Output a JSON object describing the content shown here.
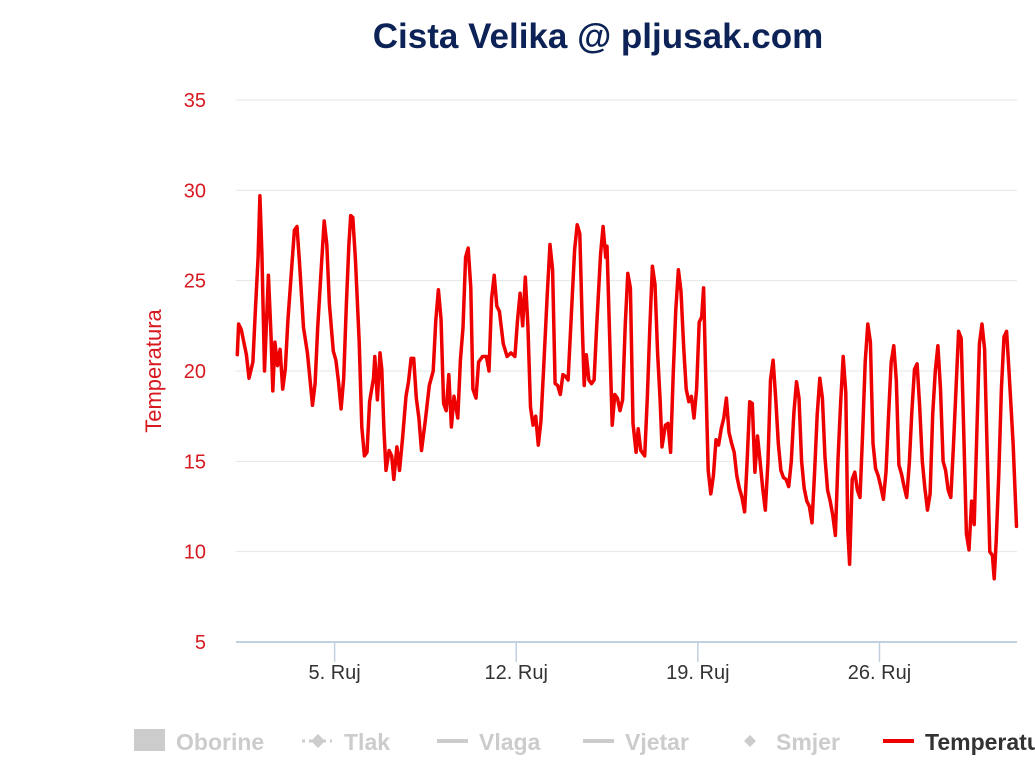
{
  "chart_data": {
    "type": "line",
    "title": "Cista Velika @ pljusak.com",
    "ylabel": "Temperatura",
    "xlabel": "",
    "ylim": [
      5,
      35
    ],
    "yticks": [
      "35",
      "30",
      "25",
      "20",
      "15",
      "10",
      "5"
    ],
    "xtick_labels": [
      "5. Ruj",
      "12. Ruj",
      "19. Ruj",
      "26. Ruj"
    ],
    "xlim_days": [
      1.2,
      31.3
    ],
    "xtick_days": [
      5,
      12,
      19,
      26
    ],
    "grid": true,
    "legend_position": "bottom",
    "colors": {
      "title": "#0d2357",
      "axis_temp": "#d71920",
      "series": "#ee0000",
      "grid": "#e6e6e6",
      "axis_line": "#c0d0e0",
      "legend_inactive": "#cccccc",
      "legend_active": "#333333"
    },
    "legend": [
      {
        "name": "Oborine",
        "symbol": "box",
        "active": false
      },
      {
        "name": "Tlak",
        "symbol": "dash-diamond",
        "active": false
      },
      {
        "name": "Vlaga",
        "symbol": "line",
        "active": false
      },
      {
        "name": "Vjetar",
        "symbol": "line",
        "active": false
      },
      {
        "name": "Smjer",
        "symbol": "diamond",
        "active": false
      },
      {
        "name": "Temperatura",
        "symbol": "line",
        "active": true
      }
    ],
    "series": [
      {
        "name": "Temperatura",
        "points": [
          [
            1.25,
            20.9
          ],
          [
            1.3,
            22.6
          ],
          [
            1.4,
            22.3
          ],
          [
            1.6,
            20.9
          ],
          [
            1.7,
            19.6
          ],
          [
            1.85,
            20.5
          ],
          [
            1.95,
            23.5
          ],
          [
            2.05,
            26.3
          ],
          [
            2.12,
            29.7
          ],
          [
            2.2,
            26.5
          ],
          [
            2.3,
            20.0
          ],
          [
            2.45,
            25.3
          ],
          [
            2.55,
            22.0
          ],
          [
            2.62,
            18.9
          ],
          [
            2.7,
            21.6
          ],
          [
            2.8,
            20.3
          ],
          [
            2.9,
            21.2
          ],
          [
            3.0,
            19.0
          ],
          [
            3.1,
            20.1
          ],
          [
            3.2,
            22.8
          ],
          [
            3.35,
            25.8
          ],
          [
            3.45,
            27.8
          ],
          [
            3.55,
            28.0
          ],
          [
            3.65,
            25.9
          ],
          [
            3.8,
            22.4
          ],
          [
            3.95,
            21.0
          ],
          [
            4.05,
            19.6
          ],
          [
            4.15,
            18.1
          ],
          [
            4.25,
            19.3
          ],
          [
            4.35,
            22.4
          ],
          [
            4.5,
            26.0
          ],
          [
            4.6,
            28.3
          ],
          [
            4.7,
            27.0
          ],
          [
            4.8,
            23.7
          ],
          [
            4.95,
            21.1
          ],
          [
            5.05,
            20.6
          ],
          [
            5.15,
            19.4
          ],
          [
            5.25,
            17.9
          ],
          [
            5.35,
            19.6
          ],
          [
            5.45,
            23.6
          ],
          [
            5.55,
            27.0
          ],
          [
            5.62,
            28.6
          ],
          [
            5.7,
            28.5
          ],
          [
            5.8,
            26.2
          ],
          [
            5.95,
            21.6
          ],
          [
            6.05,
            16.9
          ],
          [
            6.15,
            15.3
          ],
          [
            6.25,
            15.5
          ],
          [
            6.35,
            18.3
          ],
          [
            6.5,
            19.6
          ],
          [
            6.55,
            20.8
          ],
          [
            6.65,
            18.4
          ],
          [
            6.75,
            21.0
          ],
          [
            6.82,
            20.1
          ],
          [
            6.9,
            16.8
          ],
          [
            6.98,
            14.5
          ],
          [
            7.1,
            15.6
          ],
          [
            7.2,
            15.3
          ],
          [
            7.28,
            14.0
          ],
          [
            7.4,
            15.8
          ],
          [
            7.5,
            14.5
          ],
          [
            7.62,
            16.3
          ],
          [
            7.75,
            18.6
          ],
          [
            7.85,
            19.4
          ],
          [
            7.95,
            20.7
          ],
          [
            8.05,
            20.7
          ],
          [
            8.15,
            18.5
          ],
          [
            8.25,
            17.4
          ],
          [
            8.35,
            15.6
          ],
          [
            8.5,
            17.3
          ],
          [
            8.65,
            19.2
          ],
          [
            8.8,
            20.0
          ],
          [
            8.9,
            22.8
          ],
          [
            9.0,
            24.5
          ],
          [
            9.1,
            22.9
          ],
          [
            9.2,
            18.2
          ],
          [
            9.3,
            17.8
          ],
          [
            9.4,
            19.8
          ],
          [
            9.5,
            16.9
          ],
          [
            9.6,
            18.6
          ],
          [
            9.75,
            17.4
          ],
          [
            9.85,
            20.6
          ],
          [
            9.95,
            22.4
          ],
          [
            10.05,
            26.3
          ],
          [
            10.15,
            26.8
          ],
          [
            10.25,
            24.6
          ],
          [
            10.33,
            19.0
          ],
          [
            10.45,
            18.5
          ],
          [
            10.55,
            20.5
          ],
          [
            10.7,
            20.8
          ],
          [
            10.85,
            20.8
          ],
          [
            10.95,
            20.0
          ],
          [
            11.05,
            24.0
          ],
          [
            11.15,
            25.3
          ],
          [
            11.25,
            23.6
          ],
          [
            11.35,
            23.3
          ],
          [
            11.5,
            21.5
          ],
          [
            11.65,
            20.8
          ],
          [
            11.8,
            21.0
          ],
          [
            11.95,
            20.8
          ],
          [
            12.05,
            22.8
          ],
          [
            12.15,
            24.3
          ],
          [
            12.25,
            22.5
          ],
          [
            12.35,
            25.2
          ],
          [
            12.45,
            22.5
          ],
          [
            12.55,
            18.0
          ],
          [
            12.65,
            17.0
          ],
          [
            12.75,
            17.5
          ],
          [
            12.85,
            15.9
          ],
          [
            12.95,
            17.2
          ],
          [
            13.05,
            20.0
          ],
          [
            13.2,
            24.4
          ],
          [
            13.3,
            27.0
          ],
          [
            13.4,
            25.6
          ],
          [
            13.5,
            19.3
          ],
          [
            13.6,
            19.2
          ],
          [
            13.7,
            18.7
          ],
          [
            13.8,
            19.8
          ],
          [
            13.9,
            19.7
          ],
          [
            14.0,
            19.5
          ],
          [
            14.1,
            22.4
          ],
          [
            14.25,
            26.7
          ],
          [
            14.35,
            28.1
          ],
          [
            14.45,
            27.6
          ],
          [
            14.55,
            22.3
          ],
          [
            14.62,
            19.2
          ],
          [
            14.7,
            20.9
          ],
          [
            14.8,
            19.5
          ],
          [
            14.9,
            19.3
          ],
          [
            15.0,
            19.5
          ],
          [
            15.1,
            22.5
          ],
          [
            15.25,
            26.5
          ],
          [
            15.35,
            28.0
          ],
          [
            15.45,
            26.3
          ],
          [
            15.5,
            26.9
          ],
          [
            15.6,
            22.0
          ],
          [
            15.7,
            17.0
          ],
          [
            15.8,
            18.7
          ],
          [
            15.9,
            18.5
          ],
          [
            16.0,
            17.8
          ],
          [
            16.1,
            18.4
          ],
          [
            16.2,
            22.5
          ],
          [
            16.3,
            25.4
          ],
          [
            16.4,
            24.6
          ],
          [
            16.5,
            17.1
          ],
          [
            16.62,
            15.5
          ],
          [
            16.7,
            16.8
          ],
          [
            16.8,
            15.6
          ],
          [
            16.95,
            15.3
          ],
          [
            17.05,
            18.5
          ],
          [
            17.15,
            22.5
          ],
          [
            17.25,
            25.8
          ],
          [
            17.35,
            24.8
          ],
          [
            17.45,
            21.0
          ],
          [
            17.55,
            18.3
          ],
          [
            17.62,
            15.8
          ],
          [
            17.75,
            17.0
          ],
          [
            17.85,
            17.1
          ],
          [
            17.95,
            15.5
          ],
          [
            18.05,
            19.8
          ],
          [
            18.15,
            23.4
          ],
          [
            18.25,
            25.6
          ],
          [
            18.35,
            24.4
          ],
          [
            18.45,
            21.4
          ],
          [
            18.55,
            19.0
          ],
          [
            18.65,
            18.3
          ],
          [
            18.75,
            18.6
          ],
          [
            18.85,
            17.4
          ],
          [
            18.95,
            19.0
          ],
          [
            19.05,
            22.7
          ],
          [
            19.15,
            23.0
          ],
          [
            19.22,
            24.6
          ],
          [
            19.3,
            20.0
          ],
          [
            19.4,
            14.5
          ],
          [
            19.5,
            13.2
          ],
          [
            19.6,
            14.2
          ],
          [
            19.7,
            16.2
          ],
          [
            19.8,
            15.9
          ],
          [
            19.9,
            16.8
          ],
          [
            20.0,
            17.4
          ],
          [
            20.1,
            18.5
          ],
          [
            20.2,
            16.6
          ],
          [
            20.3,
            16.0
          ],
          [
            20.4,
            15.5
          ],
          [
            20.5,
            14.2
          ],
          [
            20.6,
            13.5
          ],
          [
            20.7,
            13.0
          ],
          [
            20.8,
            12.2
          ],
          [
            20.9,
            15.1
          ],
          [
            21.0,
            18.3
          ],
          [
            21.1,
            18.2
          ],
          [
            21.2,
            14.4
          ],
          [
            21.3,
            16.4
          ],
          [
            21.4,
            15.0
          ],
          [
            21.5,
            13.5
          ],
          [
            21.6,
            12.3
          ],
          [
            21.7,
            14.9
          ],
          [
            21.8,
            19.5
          ],
          [
            21.9,
            20.6
          ],
          [
            22.0,
            18.5
          ],
          [
            22.1,
            16.0
          ],
          [
            22.2,
            14.5
          ],
          [
            22.3,
            14.1
          ],
          [
            22.4,
            14.0
          ],
          [
            22.5,
            13.6
          ],
          [
            22.6,
            15.0
          ],
          [
            22.7,
            17.7
          ],
          [
            22.8,
            19.4
          ],
          [
            22.9,
            18.5
          ],
          [
            23.0,
            15.0
          ],
          [
            23.1,
            13.5
          ],
          [
            23.2,
            12.8
          ],
          [
            23.3,
            12.5
          ],
          [
            23.4,
            11.6
          ],
          [
            23.5,
            14.4
          ],
          [
            23.6,
            17.6
          ],
          [
            23.7,
            19.6
          ],
          [
            23.8,
            18.5
          ],
          [
            23.9,
            15.2
          ],
          [
            24.0,
            13.4
          ],
          [
            24.1,
            12.8
          ],
          [
            24.2,
            12.0
          ],
          [
            24.3,
            10.9
          ],
          [
            24.4,
            15.1
          ],
          [
            24.5,
            18.2
          ],
          [
            24.6,
            20.8
          ],
          [
            24.7,
            18.8
          ],
          [
            24.78,
            11.2
          ],
          [
            24.85,
            9.3
          ],
          [
            24.95,
            14.0
          ],
          [
            25.05,
            14.4
          ],
          [
            25.15,
            13.4
          ],
          [
            25.25,
            13.0
          ],
          [
            25.35,
            16.5
          ],
          [
            25.45,
            20.5
          ],
          [
            25.55,
            22.6
          ],
          [
            25.65,
            21.6
          ],
          [
            25.75,
            16.0
          ],
          [
            25.85,
            14.6
          ],
          [
            25.95,
            14.2
          ],
          [
            26.05,
            13.6
          ],
          [
            26.15,
            12.9
          ],
          [
            26.25,
            14.4
          ],
          [
            26.35,
            17.6
          ],
          [
            26.45,
            20.5
          ],
          [
            26.55,
            21.4
          ],
          [
            26.65,
            19.5
          ],
          [
            26.75,
            14.8
          ],
          [
            26.85,
            14.3
          ],
          [
            26.95,
            13.6
          ],
          [
            27.05,
            13.0
          ],
          [
            27.15,
            14.9
          ],
          [
            27.25,
            17.8
          ],
          [
            27.35,
            20.1
          ],
          [
            27.45,
            20.4
          ],
          [
            27.55,
            18.0
          ],
          [
            27.65,
            15.0
          ],
          [
            27.75,
            13.5
          ],
          [
            27.85,
            12.3
          ],
          [
            27.95,
            13.2
          ],
          [
            28.05,
            17.6
          ],
          [
            28.15,
            20.0
          ],
          [
            28.25,
            21.4
          ],
          [
            28.35,
            19.0
          ],
          [
            28.45,
            15.0
          ],
          [
            28.55,
            14.5
          ],
          [
            28.65,
            13.4
          ],
          [
            28.75,
            13.0
          ],
          [
            28.85,
            15.8
          ],
          [
            28.95,
            19.0
          ],
          [
            29.05,
            22.2
          ],
          [
            29.15,
            21.8
          ],
          [
            29.25,
            16.5
          ],
          [
            29.35,
            11.0
          ],
          [
            29.45,
            10.1
          ],
          [
            29.55,
            12.8
          ],
          [
            29.65,
            11.5
          ],
          [
            29.75,
            16.5
          ],
          [
            29.85,
            21.5
          ],
          [
            29.95,
            22.6
          ],
          [
            30.05,
            21.2
          ],
          [
            30.15,
            15.5
          ],
          [
            30.25,
            10.0
          ],
          [
            30.35,
            9.8
          ],
          [
            30.42,
            8.5
          ],
          [
            30.5,
            10.6
          ],
          [
            30.6,
            14.3
          ],
          [
            30.7,
            19.0
          ],
          [
            30.8,
            21.9
          ],
          [
            30.9,
            22.2
          ],
          [
            31.0,
            19.8
          ],
          [
            31.15,
            16.0
          ],
          [
            31.28,
            11.4
          ]
        ]
      }
    ]
  }
}
